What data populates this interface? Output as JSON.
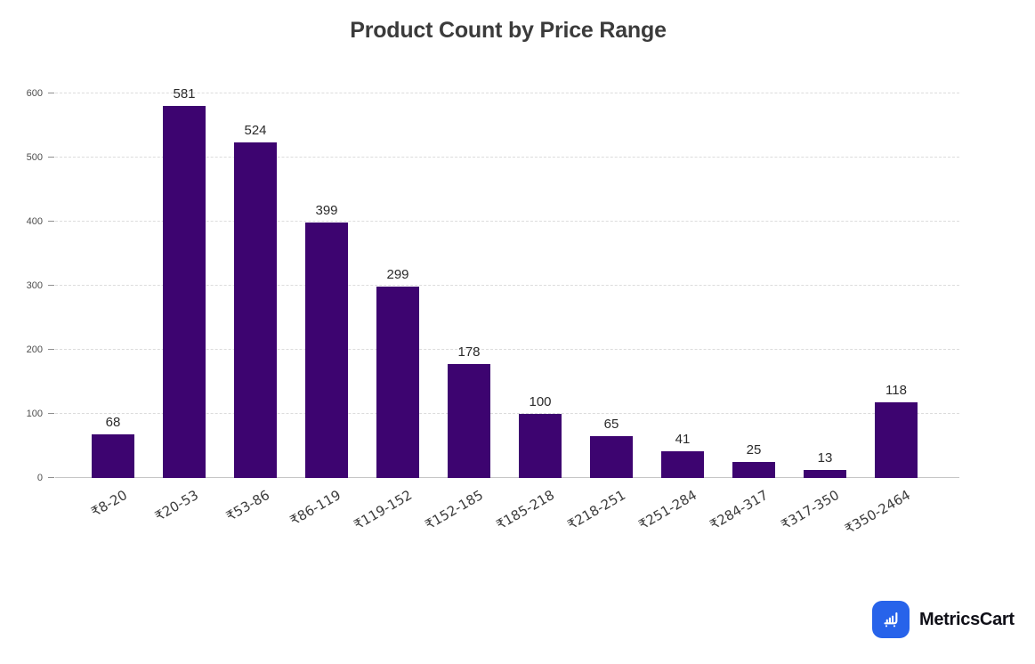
{
  "title": "Product Count by Price Range",
  "chart_data": {
    "type": "bar",
    "title": "Product Count by Price Range",
    "categories": [
      "₹8-20",
      "₹20-53",
      "₹53-86",
      "₹86-119",
      "₹119-152",
      "₹152-185",
      "₹185-218",
      "₹218-251",
      "₹251-284",
      "₹284-317",
      "₹317-350",
      "₹350-2464"
    ],
    "values": [
      68,
      581,
      524,
      399,
      299,
      178,
      100,
      65,
      41,
      25,
      13,
      118
    ],
    "xlabel": "",
    "ylabel": "",
    "ylim": [
      0,
      600
    ],
    "yticks": [
      0,
      100,
      200,
      300,
      400,
      500,
      600
    ],
    "grid": "horizontal-dashed",
    "legend": "none",
    "bar_color": "#3d0470",
    "value_labels_shown": true,
    "x_label_rotation_deg": -30
  },
  "branding": {
    "logo_text": "MetricsCart",
    "logo_icon": "bar-chart-cart-icon",
    "logo_color": "#2763ea"
  }
}
